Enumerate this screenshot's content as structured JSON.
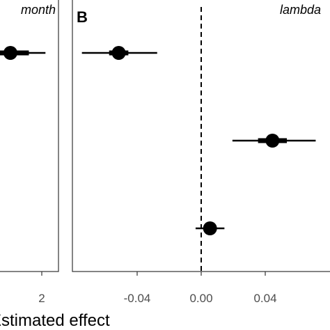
{
  "chart_data": [
    {
      "type": "scatter",
      "panel": "",
      "facet_title": "month",
      "xlabel": "Estimated effect",
      "x_ticks": [
        2
      ],
      "points": [
        {
          "estimate": 0.3,
          "inner": [
            -0.7,
            1.3
          ],
          "outer": [
            -1.8,
            2.2
          ]
        }
      ]
    },
    {
      "type": "scatter",
      "panel": "B",
      "facet_title": "lambda",
      "reference_line_x": 0,
      "x_ticks": [
        -0.04,
        0.0,
        0.04
      ],
      "x_tick_labels": [
        "-0.04",
        "0.00",
        "0.04"
      ],
      "points": [
        {
          "estimate": -0.0515,
          "inner": [
            -0.0575,
            -0.0455
          ],
          "outer": [
            -0.0745,
            -0.0275
          ]
        },
        {
          "estimate": 0.0445,
          "inner": [
            0.0355,
            0.0535
          ],
          "outer": [
            0.0195,
            0.0715
          ]
        },
        {
          "estimate": 0.0055,
          "inner": [
            0.0025,
            0.0085
          ],
          "outer": [
            -0.0035,
            0.0145
          ]
        }
      ]
    }
  ]
}
